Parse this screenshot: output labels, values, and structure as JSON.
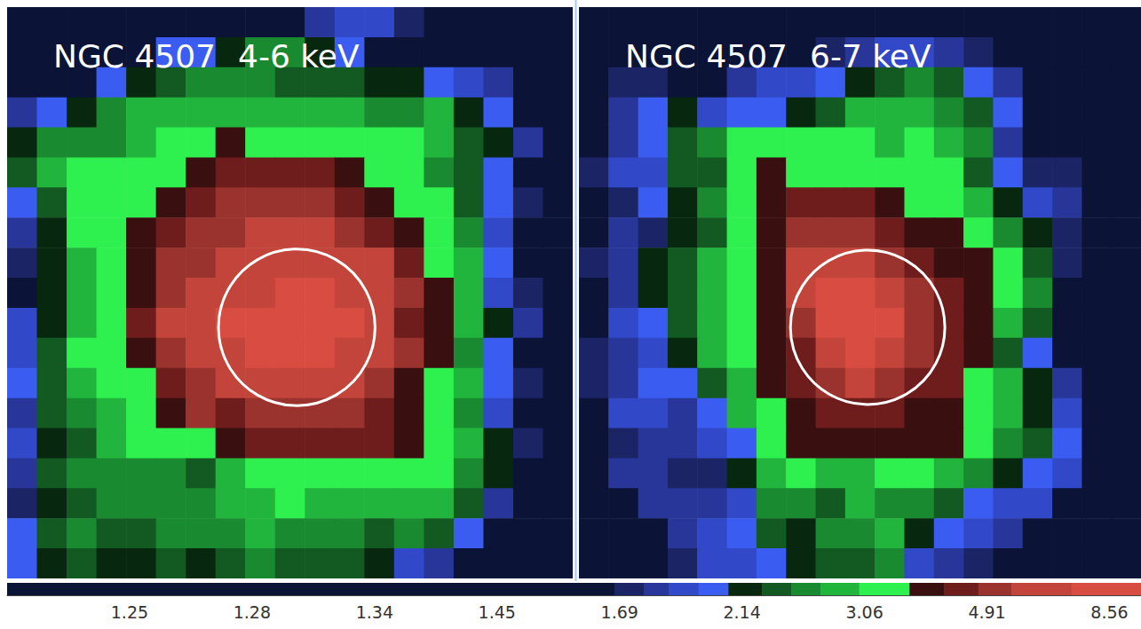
{
  "chart_data": [
    {
      "type": "heatmap",
      "title": "NGC 4507",
      "subtitle": "4-6 keV",
      "tick_labels": false,
      "xlim": [
        0,
        19
      ],
      "ylim": [
        0,
        19
      ],
      "aperture": {
        "x": 9.73,
        "y": 10.65,
        "r": 2.63
      },
      "cells": [
        [
          1.4,
          1.4,
          1.4,
          1.4,
          1.4,
          1.4,
          1.4,
          1.4,
          1.4,
          1.4,
          1.82,
          1.92,
          1.92,
          1.73,
          1.4,
          1.4,
          1.4,
          1.4,
          1.4
        ],
        [
          1.4,
          1.4,
          1.4,
          1.4,
          1.4,
          2.03,
          2.03,
          2.2,
          2.6,
          2.6,
          2.2,
          2.03,
          1.4,
          1.4,
          1.4,
          1.4,
          1.4,
          1.4,
          1.4
        ],
        [
          1.4,
          1.4,
          1.4,
          2.03,
          2.2,
          2.4,
          2.6,
          2.6,
          2.6,
          2.4,
          2.4,
          2.4,
          2.2,
          2.2,
          2.03,
          1.92,
          1.82,
          1.4,
          1.4
        ],
        [
          1.82,
          2.03,
          2.2,
          2.6,
          2.9,
          2.9,
          2.9,
          2.9,
          2.9,
          2.9,
          2.9,
          2.9,
          2.6,
          2.6,
          2.9,
          2.2,
          2.03,
          1.4,
          1.4
        ],
        [
          2.2,
          2.6,
          2.6,
          2.6,
          2.9,
          3.4,
          3.4,
          4,
          3.4,
          3.4,
          3.4,
          3.4,
          3.4,
          3.4,
          2.9,
          2.4,
          2.2,
          1.82,
          1.4
        ],
        [
          2.4,
          2.9,
          3.4,
          3.4,
          3.4,
          3.4,
          4,
          4.5,
          4.5,
          4.5,
          4.5,
          4,
          3.4,
          3.4,
          2.6,
          2.4,
          2.03,
          1.4,
          1.4
        ],
        [
          2.03,
          2.4,
          3.4,
          3.4,
          3.4,
          4,
          4.5,
          5.2,
          5.2,
          5.2,
          5.2,
          4.5,
          4,
          3.4,
          3.4,
          2.4,
          2.03,
          1.73,
          1.4
        ],
        [
          1.82,
          2.2,
          3.4,
          3.4,
          4,
          4.5,
          5.2,
          5.2,
          6.5,
          6.5,
          6.5,
          5.2,
          4.5,
          4,
          3.4,
          2.6,
          1.92,
          1.4,
          1.4
        ],
        [
          1.73,
          2.2,
          2.9,
          3.4,
          4,
          5.2,
          5.2,
          6.5,
          6.5,
          6.5,
          6.5,
          6.5,
          6.5,
          4.5,
          3.4,
          2.9,
          2.03,
          1.4,
          1.4
        ],
        [
          1.4,
          2.2,
          2.9,
          3.4,
          4,
          5.2,
          6.5,
          6.5,
          6.5,
          8,
          8,
          6.5,
          6.5,
          5.2,
          4,
          2.9,
          1.92,
          1.73,
          1.4
        ],
        [
          1.92,
          2.2,
          2.9,
          3.4,
          4.5,
          6.5,
          6.5,
          8,
          8,
          8,
          8,
          8,
          6.5,
          4.5,
          4,
          2.9,
          2.2,
          1.82,
          1.4
        ],
        [
          1.92,
          2.4,
          3.4,
          3.4,
          4,
          5.2,
          6.5,
          6.5,
          8,
          8,
          8,
          6.5,
          6.5,
          5.2,
          4,
          2.6,
          2.03,
          1.4,
          1.4
        ],
        [
          2.03,
          2.4,
          2.9,
          3.4,
          3.4,
          4.5,
          5.2,
          6.5,
          6.5,
          6.5,
          6.5,
          6.5,
          5.2,
          4,
          3.4,
          2.9,
          2.03,
          1.73,
          1.4
        ],
        [
          1.82,
          2.4,
          2.6,
          2.9,
          3.4,
          4,
          5.2,
          4.5,
          5.2,
          5.2,
          5.2,
          5.2,
          4.5,
          4,
          3.4,
          2.6,
          1.92,
          1.4,
          1.4
        ],
        [
          1.92,
          2.2,
          2.4,
          2.9,
          3.4,
          3.4,
          3.4,
          4,
          4.5,
          4.5,
          4.5,
          4.5,
          4.5,
          4,
          3.4,
          2.9,
          2.2,
          1.73,
          1.4
        ],
        [
          1.82,
          2.4,
          2.6,
          2.6,
          2.6,
          2.6,
          2.4,
          2.9,
          3.4,
          3.4,
          3.4,
          3.4,
          3.4,
          3.4,
          3.4,
          2.6,
          2.2,
          1.4,
          1.4
        ],
        [
          1.73,
          2.2,
          2.4,
          2.6,
          2.6,
          2.6,
          2.6,
          2.9,
          2.9,
          3.4,
          2.9,
          2.9,
          2.9,
          2.9,
          2.9,
          2.4,
          1.82,
          1.4,
          1.4
        ],
        [
          2.03,
          2.4,
          2.6,
          2.4,
          2.4,
          2.6,
          2.6,
          2.6,
          2.9,
          2.6,
          2.6,
          2.6,
          2.4,
          2.6,
          2.4,
          2.03,
          1.4,
          1.4,
          1.4
        ],
        [
          2.03,
          2.2,
          2.4,
          2.2,
          2.2,
          2.4,
          2.2,
          2.4,
          2.6,
          2.4,
          2.4,
          2.4,
          2.2,
          1.92,
          1.82,
          1.4,
          1.4,
          1.4,
          1.4
        ]
      ]
    },
    {
      "type": "heatmap",
      "title": "NGC 4507",
      "subtitle": "6-7 keV",
      "tick_labels": false,
      "xlim": [
        0,
        19
      ],
      "ylim": [
        0,
        19
      ],
      "aperture": {
        "x": 9.76,
        "y": 10.65,
        "r": 2.61
      },
      "cells": [
        [
          1.4,
          1.4,
          1.4,
          1.4,
          1.4,
          1.4,
          1.4,
          1.4,
          1.4,
          1.4,
          1.4,
          1.4,
          1.4,
          1.4,
          1.4,
          1.4,
          1.4,
          1.4,
          1.4
        ],
        [
          1.4,
          1.4,
          1.4,
          1.4,
          1.4,
          1.4,
          1.4,
          1.4,
          1.73,
          1.82,
          1.92,
          1.92,
          1.82,
          1.73,
          1.4,
          1.4,
          1.4,
          1.4,
          1.4
        ],
        [
          1.4,
          1.73,
          1.73,
          1.4,
          1.4,
          1.82,
          1.92,
          1.92,
          2.03,
          2.2,
          2.4,
          2.6,
          2.4,
          2.03,
          1.82,
          1.4,
          1.4,
          1.4,
          1.4
        ],
        [
          1.4,
          1.82,
          2.03,
          2.2,
          1.92,
          2.03,
          2.03,
          2.2,
          2.4,
          2.9,
          2.9,
          2.9,
          2.6,
          2.4,
          2.03,
          1.4,
          1.4,
          1.4,
          1.4
        ],
        [
          1.4,
          1.82,
          2.03,
          2.4,
          2.6,
          3.4,
          3.4,
          3.4,
          3.4,
          3.4,
          2.9,
          3.4,
          2.9,
          2.6,
          1.82,
          1.4,
          1.4,
          1.4,
          1.4
        ],
        [
          1.73,
          1.92,
          1.92,
          2.4,
          2.4,
          3.4,
          4,
          3.4,
          3.4,
          3.4,
          3.4,
          3.4,
          3.4,
          2.4,
          2.03,
          1.73,
          1.73,
          1.4,
          1.4
        ],
        [
          1.4,
          1.73,
          2.03,
          2.2,
          2.6,
          3.4,
          4,
          4.5,
          4.5,
          4.5,
          4,
          3.4,
          3.4,
          2.9,
          2.2,
          1.92,
          1.82,
          1.4,
          1.4
        ],
        [
          1.4,
          1.82,
          1.73,
          2.2,
          2.4,
          3.4,
          4,
          5.2,
          5.2,
          5.2,
          4.5,
          4,
          4,
          3.4,
          2.6,
          2.2,
          1.73,
          1.4,
          1.4
        ],
        [
          1.73,
          1.82,
          2.2,
          2.4,
          2.9,
          3.4,
          4,
          6.5,
          6.5,
          6.5,
          5.2,
          4.5,
          4,
          4,
          3.4,
          2.4,
          1.73,
          1.4,
          1.4
        ],
        [
          1.4,
          1.82,
          2.2,
          2.4,
          2.9,
          3.4,
          4,
          6.5,
          8,
          8,
          6.5,
          5.2,
          4.5,
          4,
          3.4,
          2.6,
          1.4,
          1.4,
          1.4
        ],
        [
          1.4,
          1.92,
          2.03,
          2.4,
          2.9,
          3.4,
          4,
          5.2,
          8,
          8,
          8,
          5.2,
          4.5,
          4,
          2.9,
          2.4,
          1.4,
          1.4,
          1.4
        ],
        [
          1.73,
          1.82,
          1.92,
          2.2,
          2.9,
          3.4,
          4,
          4.5,
          6.5,
          8,
          6.5,
          5.2,
          4.5,
          4,
          2.4,
          2.03,
          1.4,
          1.4,
          1.4
        ],
        [
          1.73,
          1.82,
          2.03,
          2.03,
          2.4,
          2.9,
          4,
          4.5,
          5.2,
          6.5,
          5.2,
          4.5,
          4.5,
          3.4,
          2.9,
          2.2,
          1.82,
          1.4,
          1.4
        ],
        [
          1.4,
          1.92,
          1.92,
          1.82,
          2.03,
          2.9,
          3.4,
          4,
          4.5,
          4.5,
          4.5,
          4,
          4,
          3.4,
          2.9,
          2.2,
          1.92,
          1.4,
          1.4
        ],
        [
          1.4,
          1.73,
          1.82,
          1.82,
          1.92,
          2.03,
          3.4,
          4,
          4,
          4,
          4,
          4,
          4,
          3.4,
          2.6,
          2.4,
          2.03,
          1.4,
          1.4
        ],
        [
          1.4,
          1.82,
          1.82,
          1.73,
          1.73,
          2.2,
          2.9,
          3.4,
          2.9,
          2.9,
          3.4,
          3.4,
          2.9,
          2.6,
          2.2,
          2.03,
          1.92,
          1.4,
          1.4
        ],
        [
          1.4,
          1.4,
          1.82,
          1.82,
          1.82,
          1.92,
          2.6,
          2.6,
          2.4,
          2.9,
          2.6,
          2.6,
          2.4,
          2.03,
          1.92,
          1.92,
          1.4,
          1.4,
          1.4
        ],
        [
          1.4,
          1.4,
          1.4,
          1.82,
          1.92,
          2.03,
          2.4,
          2.2,
          2.6,
          2.6,
          2.9,
          2.2,
          2.03,
          1.92,
          1.82,
          1.4,
          1.4,
          1.4,
          1.4
        ],
        [
          1.4,
          1.4,
          1.4,
          1.73,
          1.92,
          1.92,
          2.03,
          2.2,
          2.4,
          2.4,
          2.6,
          1.92,
          1.82,
          1.73,
          1.4,
          1.4,
          1.4,
          1.4,
          1.4
        ]
      ]
    }
  ],
  "colorbar": {
    "range": [
      1.22,
      9.5
    ],
    "ticks": [
      1.25,
      1.28,
      1.34,
      1.45,
      1.69,
      2.14,
      3.06,
      4.91,
      8.56
    ],
    "bounds": [
      1.22,
      1.68,
      1.78,
      1.87,
      1.98,
      2.09,
      2.29,
      2.51,
      2.73,
      3.02,
      3.74,
      4.26,
      4.78,
      5.64,
      7.43,
      9.5
    ],
    "colors": [
      "#0b1336",
      "#1b2566",
      "#28369a",
      "#3148c8",
      "#3a5cf0",
      "#07280f",
      "#135a22",
      "#1a8a30",
      "#22b53e",
      "#2ef04f",
      "#3a0f10",
      "#6e1d1c",
      "#9a332d",
      "#c2443a",
      "#d84c42"
    ]
  }
}
